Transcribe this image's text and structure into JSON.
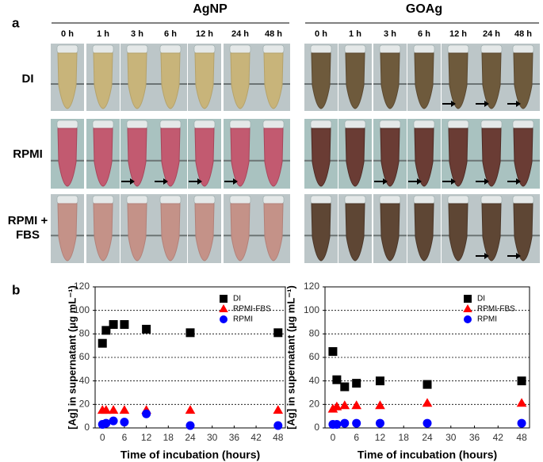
{
  "panel_a": {
    "label": "a",
    "groups": [
      "AgNP",
      "GOAg"
    ],
    "times": [
      "0 h",
      "1 h",
      "3 h",
      "6 h",
      "12 h",
      "24 h",
      "48 h"
    ],
    "rows": [
      "DI",
      "RPMI",
      "RPMI + FBS"
    ]
  },
  "panel_b": {
    "label": "b"
  },
  "chart_data": [
    {
      "type": "scatter",
      "xlabel": "Time of incubation (hours)",
      "ylabel": "[Ag] in supernatant (μg mL⁻¹)",
      "x": [
        0,
        1,
        3,
        6,
        12,
        24,
        48
      ],
      "xlim": [
        -2,
        50
      ],
      "xticks": [
        0,
        6,
        12,
        18,
        24,
        30,
        36,
        42,
        48
      ],
      "ylim": [
        0,
        120
      ],
      "yticks": [
        0,
        20,
        40,
        60,
        80,
        100,
        120
      ],
      "grid": true,
      "legend": "upper right",
      "series": [
        {
          "name": "DI",
          "color": "#000000",
          "marker": "square",
          "values": [
            72,
            83,
            88,
            88,
            84,
            81,
            81
          ]
        },
        {
          "name": "RPMI-FBS",
          "color": "#ff0000",
          "marker": "triangle",
          "values": [
            15,
            15,
            15,
            15,
            15,
            15,
            15
          ]
        },
        {
          "name": "RPMI",
          "color": "#0000ff",
          "marker": "circle",
          "values": [
            3,
            4,
            6,
            5,
            12,
            2,
            2
          ]
        }
      ]
    },
    {
      "type": "scatter",
      "xlabel": "Time of incubation (hours)",
      "ylabel": "[Ag] in supernatant (μg mL⁻¹)",
      "x": [
        0,
        1,
        3,
        6,
        12,
        24,
        48
      ],
      "xlim": [
        -2,
        50
      ],
      "xticks": [
        0,
        6,
        12,
        18,
        24,
        30,
        36,
        42,
        48
      ],
      "ylim": [
        0,
        120
      ],
      "yticks": [
        0,
        20,
        40,
        60,
        80,
        100,
        120
      ],
      "grid": true,
      "legend": "upper right",
      "series": [
        {
          "name": "DI",
          "color": "#000000",
          "marker": "square",
          "values": [
            65,
            41,
            35,
            38,
            40,
            37,
            40
          ]
        },
        {
          "name": "RPMI-FBS",
          "color": "#ff0000",
          "marker": "triangle",
          "values": [
            16,
            18,
            19,
            19,
            19,
            21,
            21
          ]
        },
        {
          "name": "RPMI",
          "color": "#0000ff",
          "marker": "circle",
          "values": [
            3,
            3,
            4,
            4,
            4,
            4,
            4
          ]
        }
      ]
    }
  ]
}
